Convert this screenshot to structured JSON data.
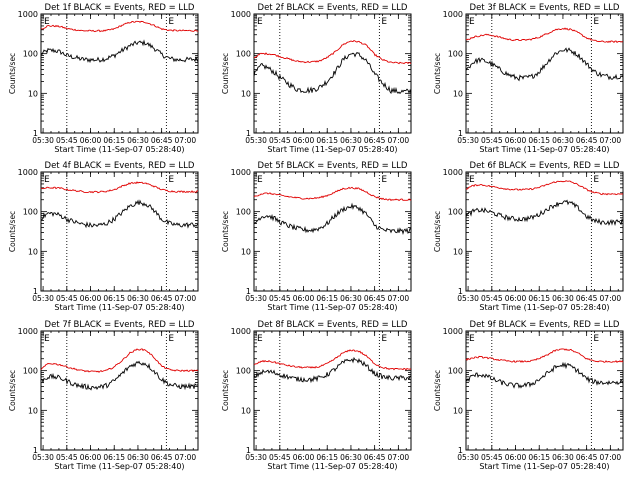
{
  "colors": {
    "events": "#000000",
    "lld": "#e00000",
    "axes": "#000000",
    "background": "#ffffff"
  },
  "shared": {
    "xlabel": "Start Time (11-Sep-07 05:28:40)",
    "ylabel": "Counts/sec",
    "x_ticks": [
      "05:30",
      "05:45",
      "06:00",
      "06:15",
      "06:30",
      "06:45",
      "07:00"
    ],
    "x_tick_minutes": [
      30,
      45,
      60,
      75,
      90,
      105,
      120
    ],
    "y_ticks": [
      "1",
      "10",
      "100",
      "1000"
    ],
    "y_tick_values": [
      1,
      10,
      100,
      1000
    ],
    "xlim_minutes": [
      28.67,
      128
    ],
    "ylim": [
      1,
      1000
    ],
    "marker_minutes": [
      45,
      108
    ],
    "marker_labels": [
      "E",
      "E"
    ]
  },
  "chart_data": [
    {
      "type": "line",
      "title": "Det 1f BLACK = Events, RED = LLD",
      "xlabel": "Start Time (11-Sep-07 05:28:40)",
      "ylabel": "Counts/sec",
      "x_minutes": [
        29,
        33,
        37,
        41,
        45,
        50,
        55,
        60,
        65,
        70,
        75,
        80,
        85,
        90,
        95,
        100,
        105,
        110,
        115,
        120,
        125,
        128
      ],
      "series": [
        {
          "name": "Events",
          "color": "#000000",
          "values": [
            100,
            120,
            120,
            110,
            90,
            80,
            72,
            70,
            70,
            75,
            90,
            120,
            160,
            190,
            185,
            140,
            95,
            75,
            70,
            70,
            72,
            72
          ]
        },
        {
          "name": "LLD",
          "color": "#e00000",
          "values": [
            420,
            500,
            500,
            480,
            430,
            400,
            380,
            375,
            375,
            380,
            420,
            520,
            620,
            640,
            620,
            520,
            420,
            390,
            380,
            380,
            380,
            380
          ]
        }
      ]
    },
    {
      "type": "line",
      "title": "Det 2f BLACK = Events, RED = LLD",
      "xlabel": "Start Time (11-Sep-07 05:28:40)",
      "ylabel": "Counts/sec",
      "x_minutes": [
        29,
        33,
        37,
        41,
        45,
        50,
        55,
        60,
        65,
        70,
        75,
        80,
        85,
        90,
        95,
        100,
        105,
        110,
        115,
        120,
        125,
        128
      ],
      "series": [
        {
          "name": "Events",
          "color": "#000000",
          "values": [
            30,
            50,
            45,
            35,
            25,
            18,
            13,
            12,
            12,
            14,
            20,
            35,
            70,
            100,
            95,
            65,
            30,
            18,
            12,
            11,
            11,
            11
          ]
        },
        {
          "name": "LLD",
          "color": "#e00000",
          "values": [
            80,
            100,
            100,
            95,
            85,
            75,
            65,
            62,
            62,
            65,
            80,
            110,
            170,
            210,
            200,
            160,
            95,
            70,
            60,
            58,
            58,
            58
          ]
        }
      ]
    },
    {
      "type": "line",
      "title": "Det 3f BLACK = Events, RED = LLD",
      "xlabel": "Start Time (11-Sep-07 05:28:40)",
      "ylabel": "Counts/sec",
      "x_minutes": [
        29,
        33,
        37,
        41,
        45,
        50,
        55,
        60,
        65,
        70,
        75,
        80,
        85,
        90,
        95,
        100,
        105,
        110,
        115,
        120,
        125,
        128
      ],
      "series": [
        {
          "name": "Events",
          "color": "#000000",
          "values": [
            40,
            60,
            70,
            65,
            55,
            40,
            30,
            25,
            24,
            26,
            35,
            60,
            100,
            125,
            120,
            90,
            55,
            35,
            28,
            26,
            27,
            27
          ]
        },
        {
          "name": "LLD",
          "color": "#e00000",
          "values": [
            220,
            260,
            280,
            300,
            290,
            260,
            230,
            220,
            220,
            230,
            260,
            320,
            400,
            430,
            410,
            330,
            250,
            210,
            200,
            200,
            200,
            200
          ]
        }
      ]
    },
    {
      "type": "line",
      "title": "Det 4f BLACK = Events, RED = LLD",
      "xlabel": "Start Time (11-Sep-07 05:28:40)",
      "ylabel": "Counts/sec",
      "x_minutes": [
        29,
        33,
        37,
        41,
        45,
        50,
        55,
        60,
        65,
        70,
        75,
        80,
        85,
        90,
        95,
        100,
        105,
        110,
        115,
        120,
        125,
        128
      ],
      "series": [
        {
          "name": "Events",
          "color": "#000000",
          "values": [
            70,
            90,
            90,
            80,
            65,
            55,
            48,
            45,
            45,
            50,
            65,
            95,
            140,
            170,
            160,
            110,
            65,
            50,
            46,
            46,
            47,
            47
          ]
        },
        {
          "name": "LLD",
          "color": "#e00000",
          "values": [
            380,
            400,
            400,
            390,
            360,
            340,
            320,
            315,
            315,
            325,
            360,
            440,
            520,
            540,
            520,
            440,
            360,
            330,
            320,
            320,
            320,
            320
          ]
        }
      ]
    },
    {
      "type": "line",
      "title": "Det 5f BLACK = Events, RED = LLD",
      "xlabel": "Start Time (11-Sep-07 05:28:40)",
      "ylabel": "Counts/sec",
      "x_minutes": [
        29,
        33,
        37,
        41,
        45,
        50,
        55,
        60,
        65,
        70,
        75,
        80,
        85,
        90,
        95,
        100,
        105,
        110,
        115,
        120,
        125,
        128
      ],
      "series": [
        {
          "name": "Events",
          "color": "#000000",
          "values": [
            50,
            75,
            80,
            70,
            55,
            45,
            38,
            35,
            34,
            38,
            50,
            80,
            115,
            135,
            125,
            85,
            45,
            35,
            32,
            32,
            33,
            33
          ]
        },
        {
          "name": "LLD",
          "color": "#e00000",
          "values": [
            240,
            280,
            290,
            280,
            260,
            240,
            225,
            215,
            215,
            225,
            255,
            310,
            380,
            400,
            380,
            310,
            240,
            210,
            200,
            200,
            200,
            200
          ]
        }
      ]
    },
    {
      "type": "line",
      "title": "Det 6f BLACK = Events, RED = LLD",
      "xlabel": "Start Time (11-Sep-07 05:28:40)",
      "ylabel": "Counts/sec",
      "x_minutes": [
        29,
        33,
        37,
        41,
        45,
        50,
        55,
        60,
        65,
        70,
        75,
        80,
        85,
        90,
        95,
        100,
        105,
        110,
        115,
        120,
        125,
        128
      ],
      "series": [
        {
          "name": "Events",
          "color": "#000000",
          "values": [
            80,
            100,
            110,
            105,
            95,
            80,
            70,
            65,
            65,
            70,
            85,
            115,
            150,
            175,
            165,
            120,
            75,
            58,
            54,
            54,
            55,
            55
          ]
        },
        {
          "name": "LLD",
          "color": "#e00000",
          "values": [
            380,
            450,
            480,
            460,
            430,
            400,
            370,
            360,
            360,
            370,
            410,
            480,
            560,
            590,
            570,
            470,
            360,
            300,
            280,
            280,
            280,
            280
          ]
        }
      ]
    },
    {
      "type": "line",
      "title": "Det 7f BLACK = Events, RED = LLD",
      "xlabel": "Start Time (11-Sep-07 05:28:40)",
      "ylabel": "Counts/sec",
      "x_minutes": [
        29,
        33,
        37,
        41,
        45,
        50,
        55,
        60,
        65,
        70,
        75,
        80,
        85,
        90,
        95,
        100,
        105,
        110,
        115,
        120,
        125,
        128
      ],
      "series": [
        {
          "name": "Events",
          "color": "#000000",
          "values": [
            55,
            70,
            70,
            65,
            55,
            45,
            40,
            38,
            38,
            42,
            55,
            85,
            130,
            160,
            150,
            100,
            60,
            45,
            40,
            40,
            40,
            40
          ]
        },
        {
          "name": "LLD",
          "color": "#e00000",
          "values": [
            110,
            150,
            150,
            140,
            125,
            110,
            100,
            95,
            95,
            100,
            125,
            180,
            280,
            350,
            330,
            220,
            130,
            105,
            100,
            100,
            100,
            100
          ]
        }
      ]
    },
    {
      "type": "line",
      "title": "Det 8f BLACK = Events, RED = LLD",
      "xlabel": "Start Time (11-Sep-07 05:28:40)",
      "ylabel": "Counts/sec",
      "x_minutes": [
        29,
        33,
        37,
        41,
        45,
        50,
        55,
        60,
        65,
        70,
        75,
        80,
        85,
        90,
        95,
        100,
        105,
        110,
        115,
        120,
        125,
        128
      ],
      "series": [
        {
          "name": "Events",
          "color": "#000000",
          "values": [
            70,
            90,
            95,
            90,
            80,
            70,
            62,
            60,
            60,
            65,
            80,
            110,
            160,
            190,
            180,
            130,
            85,
            70,
            65,
            65,
            66,
            66
          ]
        },
        {
          "name": "LLD",
          "color": "#e00000",
          "values": [
            140,
            170,
            175,
            165,
            150,
            135,
            125,
            120,
            120,
            125,
            150,
            200,
            280,
            330,
            310,
            230,
            150,
            120,
            110,
            110,
            110,
            110
          ]
        }
      ]
    },
    {
      "type": "line",
      "title": "Det 9f BLACK = Events, RED = LLD",
      "xlabel": "Start Time (11-Sep-07 05:28:40)",
      "ylabel": "Counts/sec",
      "x_minutes": [
        29,
        33,
        37,
        41,
        45,
        50,
        55,
        60,
        65,
        70,
        75,
        80,
        85,
        90,
        95,
        100,
        105,
        110,
        115,
        120,
        125,
        128
      ],
      "series": [
        {
          "name": "Events",
          "color": "#000000",
          "values": [
            55,
            75,
            80,
            75,
            62,
            52,
            45,
            42,
            42,
            46,
            60,
            85,
            120,
            140,
            130,
            95,
            62,
            52,
            50,
            50,
            52,
            52
          ]
        },
        {
          "name": "LLD",
          "color": "#e00000",
          "values": [
            190,
            210,
            220,
            215,
            200,
            185,
            175,
            170,
            170,
            175,
            200,
            250,
            320,
            350,
            330,
            270,
            200,
            175,
            170,
            170,
            170,
            170
          ]
        }
      ]
    }
  ]
}
